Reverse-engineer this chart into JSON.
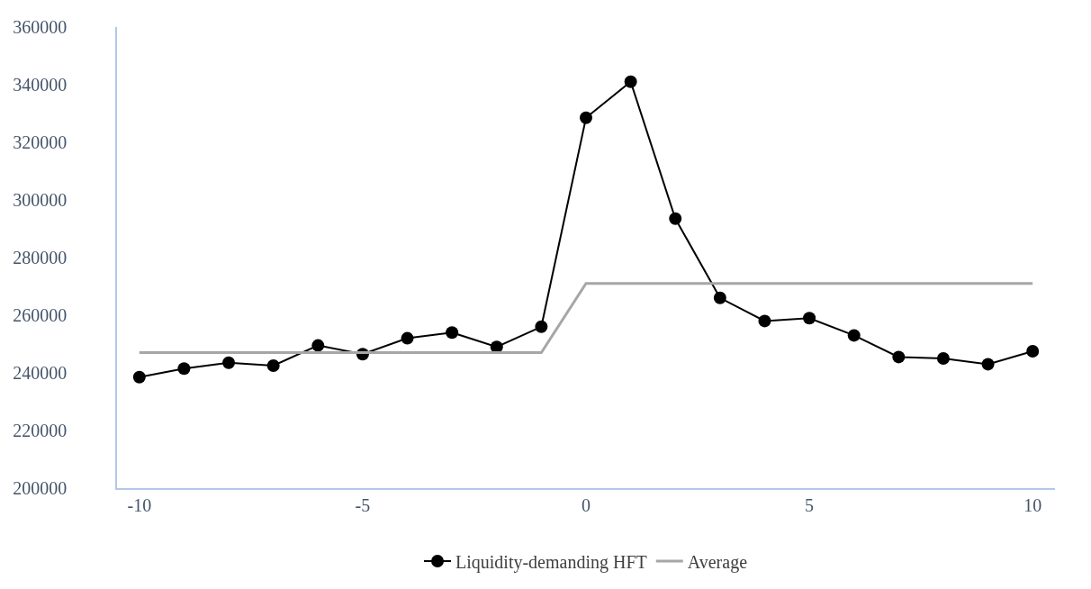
{
  "chart_data": {
    "type": "line",
    "x": [
      -10,
      -9,
      -8,
      -7,
      -6,
      -5,
      -4,
      -3,
      -2,
      -1,
      0,
      1,
      2,
      3,
      4,
      5,
      6,
      7,
      8,
      9,
      10
    ],
    "series": [
      {
        "name": "Liquidity-demanding HFT",
        "color": "#000000",
        "marker": "circle",
        "values": [
          238500,
          241500,
          243500,
          242500,
          249500,
          246500,
          252000,
          254000,
          249000,
          256000,
          328500,
          341000,
          293500,
          266000,
          258000,
          259000,
          253000,
          245500,
          245000,
          243000,
          247500
        ]
      },
      {
        "name": "Average",
        "color": "#a6a6a6",
        "marker": "none",
        "values": [
          247000,
          247000,
          247000,
          247000,
          247000,
          247000,
          247000,
          247000,
          247000,
          247000,
          271000,
          271000,
          271000,
          271000,
          271000,
          271000,
          271000,
          271000,
          271000,
          271000,
          271000
        ]
      }
    ],
    "xlim": [
      -10.5,
      10.5
    ],
    "xticks": [
      -10,
      -5,
      0,
      5,
      10
    ],
    "ylim": [
      200000,
      360000
    ],
    "yticks": [
      200000,
      220000,
      240000,
      260000,
      280000,
      300000,
      320000,
      340000,
      360000
    ],
    "grid": false,
    "legend": "bottom",
    "line_style": "solid"
  }
}
